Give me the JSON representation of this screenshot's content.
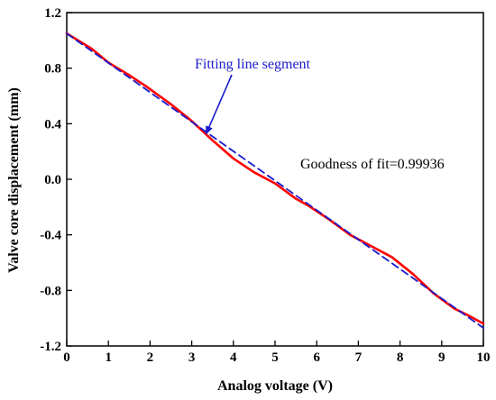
{
  "chart_data": {
    "type": "line",
    "title": "",
    "xlabel": "Analog voltage (V)",
    "ylabel": "Valve core displacement (mm)",
    "xlim": [
      0,
      10
    ],
    "ylim": [
      -1.2,
      1.2
    ],
    "x_ticks": [
      0,
      1,
      2,
      3,
      4,
      5,
      6,
      7,
      8,
      9,
      10
    ],
    "y_ticks": [
      1.2,
      0.8,
      0.4,
      0.0,
      -0.4,
      -0.8,
      -1.2
    ],
    "x_tick_labels": [
      "0",
      "1",
      "2",
      "3",
      "4",
      "5",
      "6",
      "7",
      "8",
      "9",
      "10"
    ],
    "y_tick_labels": [
      "1.2",
      "0.8",
      "0.4",
      "0.0",
      "-0.4",
      "-0.8",
      "-1.2"
    ],
    "grid": false,
    "series": [
      {
        "style": "solid",
        "color": "#ff0000",
        "x": [
          0,
          0.6,
          1.0,
          1.5,
          1.9,
          2.5,
          3.0,
          3.5,
          4.0,
          4.5,
          5.0,
          5.5,
          5.8,
          6.3,
          6.8,
          7.3,
          7.8,
          8.3,
          8.8,
          9.3,
          9.7,
          10.0
        ],
        "y": [
          1.05,
          0.94,
          0.84,
          0.75,
          0.67,
          0.54,
          0.42,
          0.28,
          0.15,
          0.05,
          -0.03,
          -0.14,
          -0.19,
          -0.29,
          -0.4,
          -0.48,
          -0.56,
          -0.68,
          -0.82,
          -0.93,
          -0.99,
          -1.04
        ]
      },
      {
        "style": "dashed",
        "color": "#1a1acc",
        "x": [
          0,
          10.0
        ],
        "y": [
          1.05,
          -1.07
        ]
      }
    ],
    "annotations": [
      {
        "text": "Fitting line segment",
        "arrow_to": [
          3.35,
          0.33
        ],
        "color": "#1a1acc"
      },
      {
        "text": "Goodness of fit=0.99936",
        "color": "#000000"
      }
    ]
  }
}
